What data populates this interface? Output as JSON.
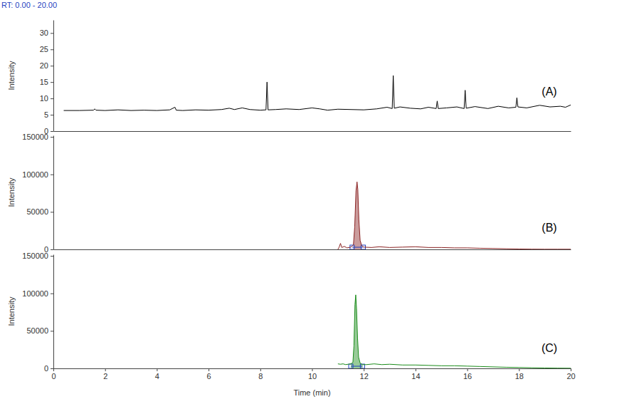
{
  "caption": "RT: 0.00 - 20.00",
  "chart_data": [
    {
      "type": "line",
      "annotation": "(A)",
      "y_label": "Intensity",
      "color": "#000000",
      "x": [
        0.4,
        1.0,
        1.55,
        1.6,
        1.65,
        2.0,
        2.5,
        3.0,
        3.5,
        4.0,
        4.5,
        4.7,
        4.75,
        5.0,
        5.5,
        6.0,
        6.5,
        6.8,
        7.0,
        7.3,
        7.6,
        8.0,
        8.22,
        8.26,
        8.3,
        8.6,
        9.0,
        9.5,
        10.0,
        10.3,
        10.6,
        11.0,
        11.5,
        12.0,
        12.5,
        12.9,
        13.1,
        13.14,
        13.18,
        13.4,
        13.8,
        14.2,
        14.5,
        14.8,
        14.84,
        14.88,
        15.2,
        15.6,
        15.88,
        15.92,
        15.96,
        16.3,
        16.8,
        17.2,
        17.6,
        17.88,
        17.92,
        17.96,
        18.3,
        18.8,
        19.2,
        19.6,
        19.8,
        20.0
      ],
      "values": [
        6.3,
        6.3,
        6.4,
        6.8,
        6.4,
        6.3,
        6.5,
        6.3,
        6.4,
        6.3,
        6.5,
        7.3,
        6.4,
        6.3,
        6.5,
        6.4,
        6.6,
        7.0,
        6.6,
        7.1,
        6.6,
        6.4,
        6.5,
        15.0,
        6.5,
        6.6,
        6.8,
        6.6,
        7.1,
        6.8,
        6.4,
        6.7,
        6.6,
        6.5,
        6.8,
        7.3,
        6.9,
        17.0,
        7.0,
        7.4,
        7.0,
        6.8,
        7.3,
        6.9,
        9.2,
        6.9,
        7.1,
        7.4,
        6.9,
        12.5,
        7.0,
        7.5,
        6.9,
        7.6,
        7.1,
        7.3,
        10.2,
        7.4,
        7.1,
        7.9,
        7.4,
        7.6,
        7.3,
        8.0
      ],
      "xlim": [
        0,
        20
      ],
      "ylim": [
        0,
        34
      ],
      "yticks": [
        0,
        5,
        10,
        15,
        20,
        25,
        30
      ],
      "tick_labels": "y"
    },
    {
      "type": "line",
      "annotation": "(B)",
      "y_label": "Intensity",
      "color": "#8b2323",
      "x": [
        11.0,
        11.05,
        11.1,
        11.15,
        11.25,
        11.35,
        11.5,
        11.6,
        11.65,
        11.7,
        11.74,
        11.77,
        11.81,
        11.86,
        11.92,
        12.0,
        12.3,
        12.6,
        13.0,
        13.5,
        14.0,
        14.5,
        15.0,
        15.5,
        16.0,
        16.5,
        17.0,
        17.5,
        18.0,
        18.5,
        19.0,
        19.5,
        20.0
      ],
      "values": [
        0,
        3000,
        8000,
        2500,
        4000,
        2000,
        3000,
        6000,
        30000,
        78000,
        90000,
        80000,
        40000,
        12000,
        5000,
        3000,
        2500,
        3500,
        2500,
        3000,
        3500,
        2500,
        2500,
        2000,
        2000,
        1500,
        1200,
        800,
        500,
        300,
        200,
        200,
        200
      ],
      "peak_range": [
        11.55,
        11.98
      ],
      "xlim": [
        0,
        20
      ],
      "ylim": [
        0,
        152000
      ],
      "yticks": [
        0,
        50000,
        100000,
        150000
      ],
      "tick_labels": "y"
    },
    {
      "type": "line",
      "annotation": "(C)",
      "y_label": "Intensity",
      "x_label": "Time (min)",
      "color": "#1a8c1a",
      "x": [
        11.0,
        11.1,
        11.2,
        11.3,
        11.4,
        11.5,
        11.58,
        11.62,
        11.66,
        11.69,
        11.72,
        11.76,
        11.8,
        11.86,
        11.95,
        12.1,
        12.4,
        12.7,
        13.0,
        13.5,
        14.0,
        14.5,
        15.0,
        15.5,
        16.0,
        16.5,
        17.0,
        17.5,
        18.0,
        18.5,
        19.0,
        19.5,
        20.0
      ],
      "values": [
        6000,
        5500,
        6000,
        5000,
        5500,
        6000,
        8000,
        30000,
        85000,
        98000,
        80000,
        40000,
        15000,
        7000,
        5000,
        5000,
        6000,
        5000,
        5500,
        4500,
        4500,
        4000,
        3500,
        3500,
        3000,
        2500,
        2000,
        1500,
        1200,
        800,
        500,
        300,
        200
      ],
      "peak_range": [
        11.5,
        11.95
      ],
      "xlim": [
        0,
        20
      ],
      "xticks": [
        0,
        2,
        4,
        6,
        8,
        10,
        12,
        14,
        16,
        18,
        20
      ],
      "ylim": [
        0,
        152000
      ],
      "yticks": [
        0,
        50000,
        100000,
        150000
      ]
    }
  ]
}
